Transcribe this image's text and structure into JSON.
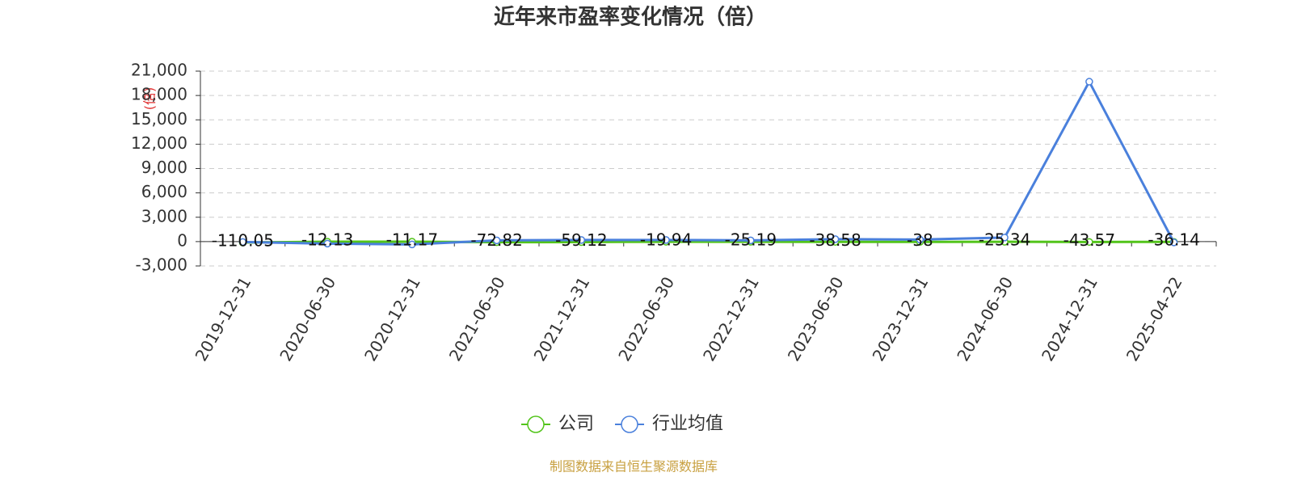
{
  "chart_data": {
    "type": "line",
    "title": "近年来市盈率变化情况（倍）",
    "y_label": "(倍)",
    "source": "制图数据来自恒生聚源数据库",
    "categories": [
      "2019-12-31",
      "2020-06-30",
      "2020-12-31",
      "2021-06-30",
      "2021-12-31",
      "2022-06-30",
      "2022-12-31",
      "2023-06-30",
      "2023-12-31",
      "2024-06-30",
      "2024-12-31",
      "2025-04-22"
    ],
    "series": [
      {
        "name": "公司",
        "color": "#52c41a",
        "values": [
          -110.05,
          -12.13,
          -11.17,
          -72.82,
          -59.12,
          -19.94,
          -25.19,
          -38.58,
          -38,
          -25.34,
          -43.57,
          -36.14
        ],
        "labels": true
      },
      {
        "name": "行业均值",
        "color": "#4a80dc",
        "values": [
          -50,
          -250,
          -350,
          150,
          200,
          200,
          150,
          300,
          250,
          500,
          19700,
          -100
        ]
      }
    ],
    "ylim": [
      -3000,
      21000
    ],
    "yticks": [
      {
        "value": -3000,
        "label": "-3,000"
      },
      0,
      {
        "value": 3000,
        "label": "3,000"
      },
      {
        "value": 6000,
        "label": "6,000"
      },
      {
        "value": 9000,
        "label": "9,000"
      },
      {
        "value": 12000,
        "label": "12,000"
      },
      {
        "value": 15000,
        "label": "15,000"
      },
      {
        "value": 18000,
        "label": "18,000"
      },
      {
        "value": 21000,
        "label": "21,000"
      }
    ],
    "grid": true
  }
}
